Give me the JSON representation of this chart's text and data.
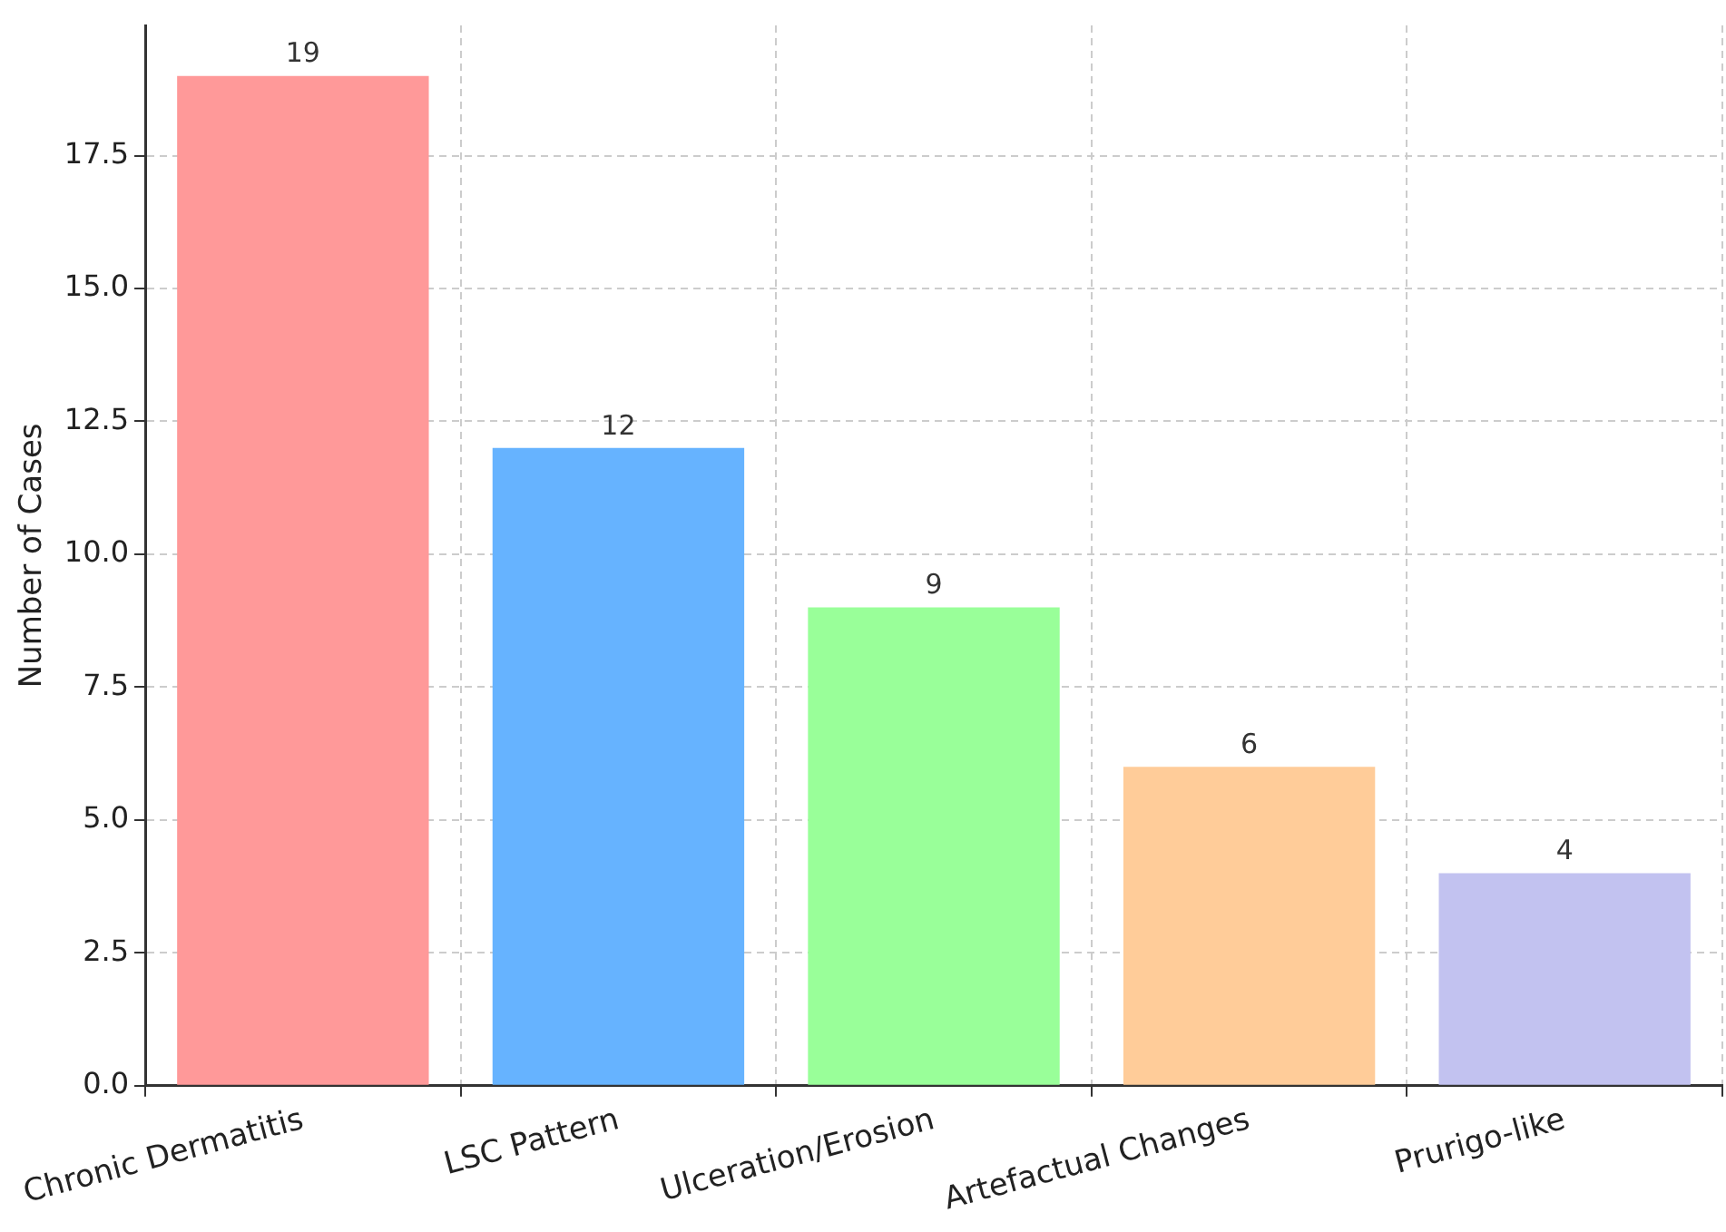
{
  "chart_data": {
    "type": "bar",
    "ylabel": "Number of Cases",
    "categories": [
      "Chronic Dermatitis",
      "LSC Pattern",
      "Ulceration/Erosion",
      "Artefactual Changes",
      "Prurigo-like"
    ],
    "values": [
      19,
      12,
      9,
      6,
      4
    ],
    "colors": [
      "#ff9999",
      "#66b3ff",
      "#99ff99",
      "#ffcc99",
      "#c2c2f0"
    ],
    "ylim": [
      0,
      19.95
    ],
    "yticks": [
      {
        "value": 0,
        "label": "0.0"
      },
      {
        "value": 2.5,
        "label": "2.5"
      },
      {
        "value": 5,
        "label": "5.0"
      },
      {
        "value": 7.5,
        "label": "7.5"
      },
      {
        "value": 10,
        "label": "10.0"
      },
      {
        "value": 12.5,
        "label": "12.5"
      },
      {
        "value": 15,
        "label": "15.0"
      },
      {
        "value": 17.5,
        "label": "17.5"
      }
    ],
    "grid": true,
    "data_labels": true,
    "legend": false
  }
}
